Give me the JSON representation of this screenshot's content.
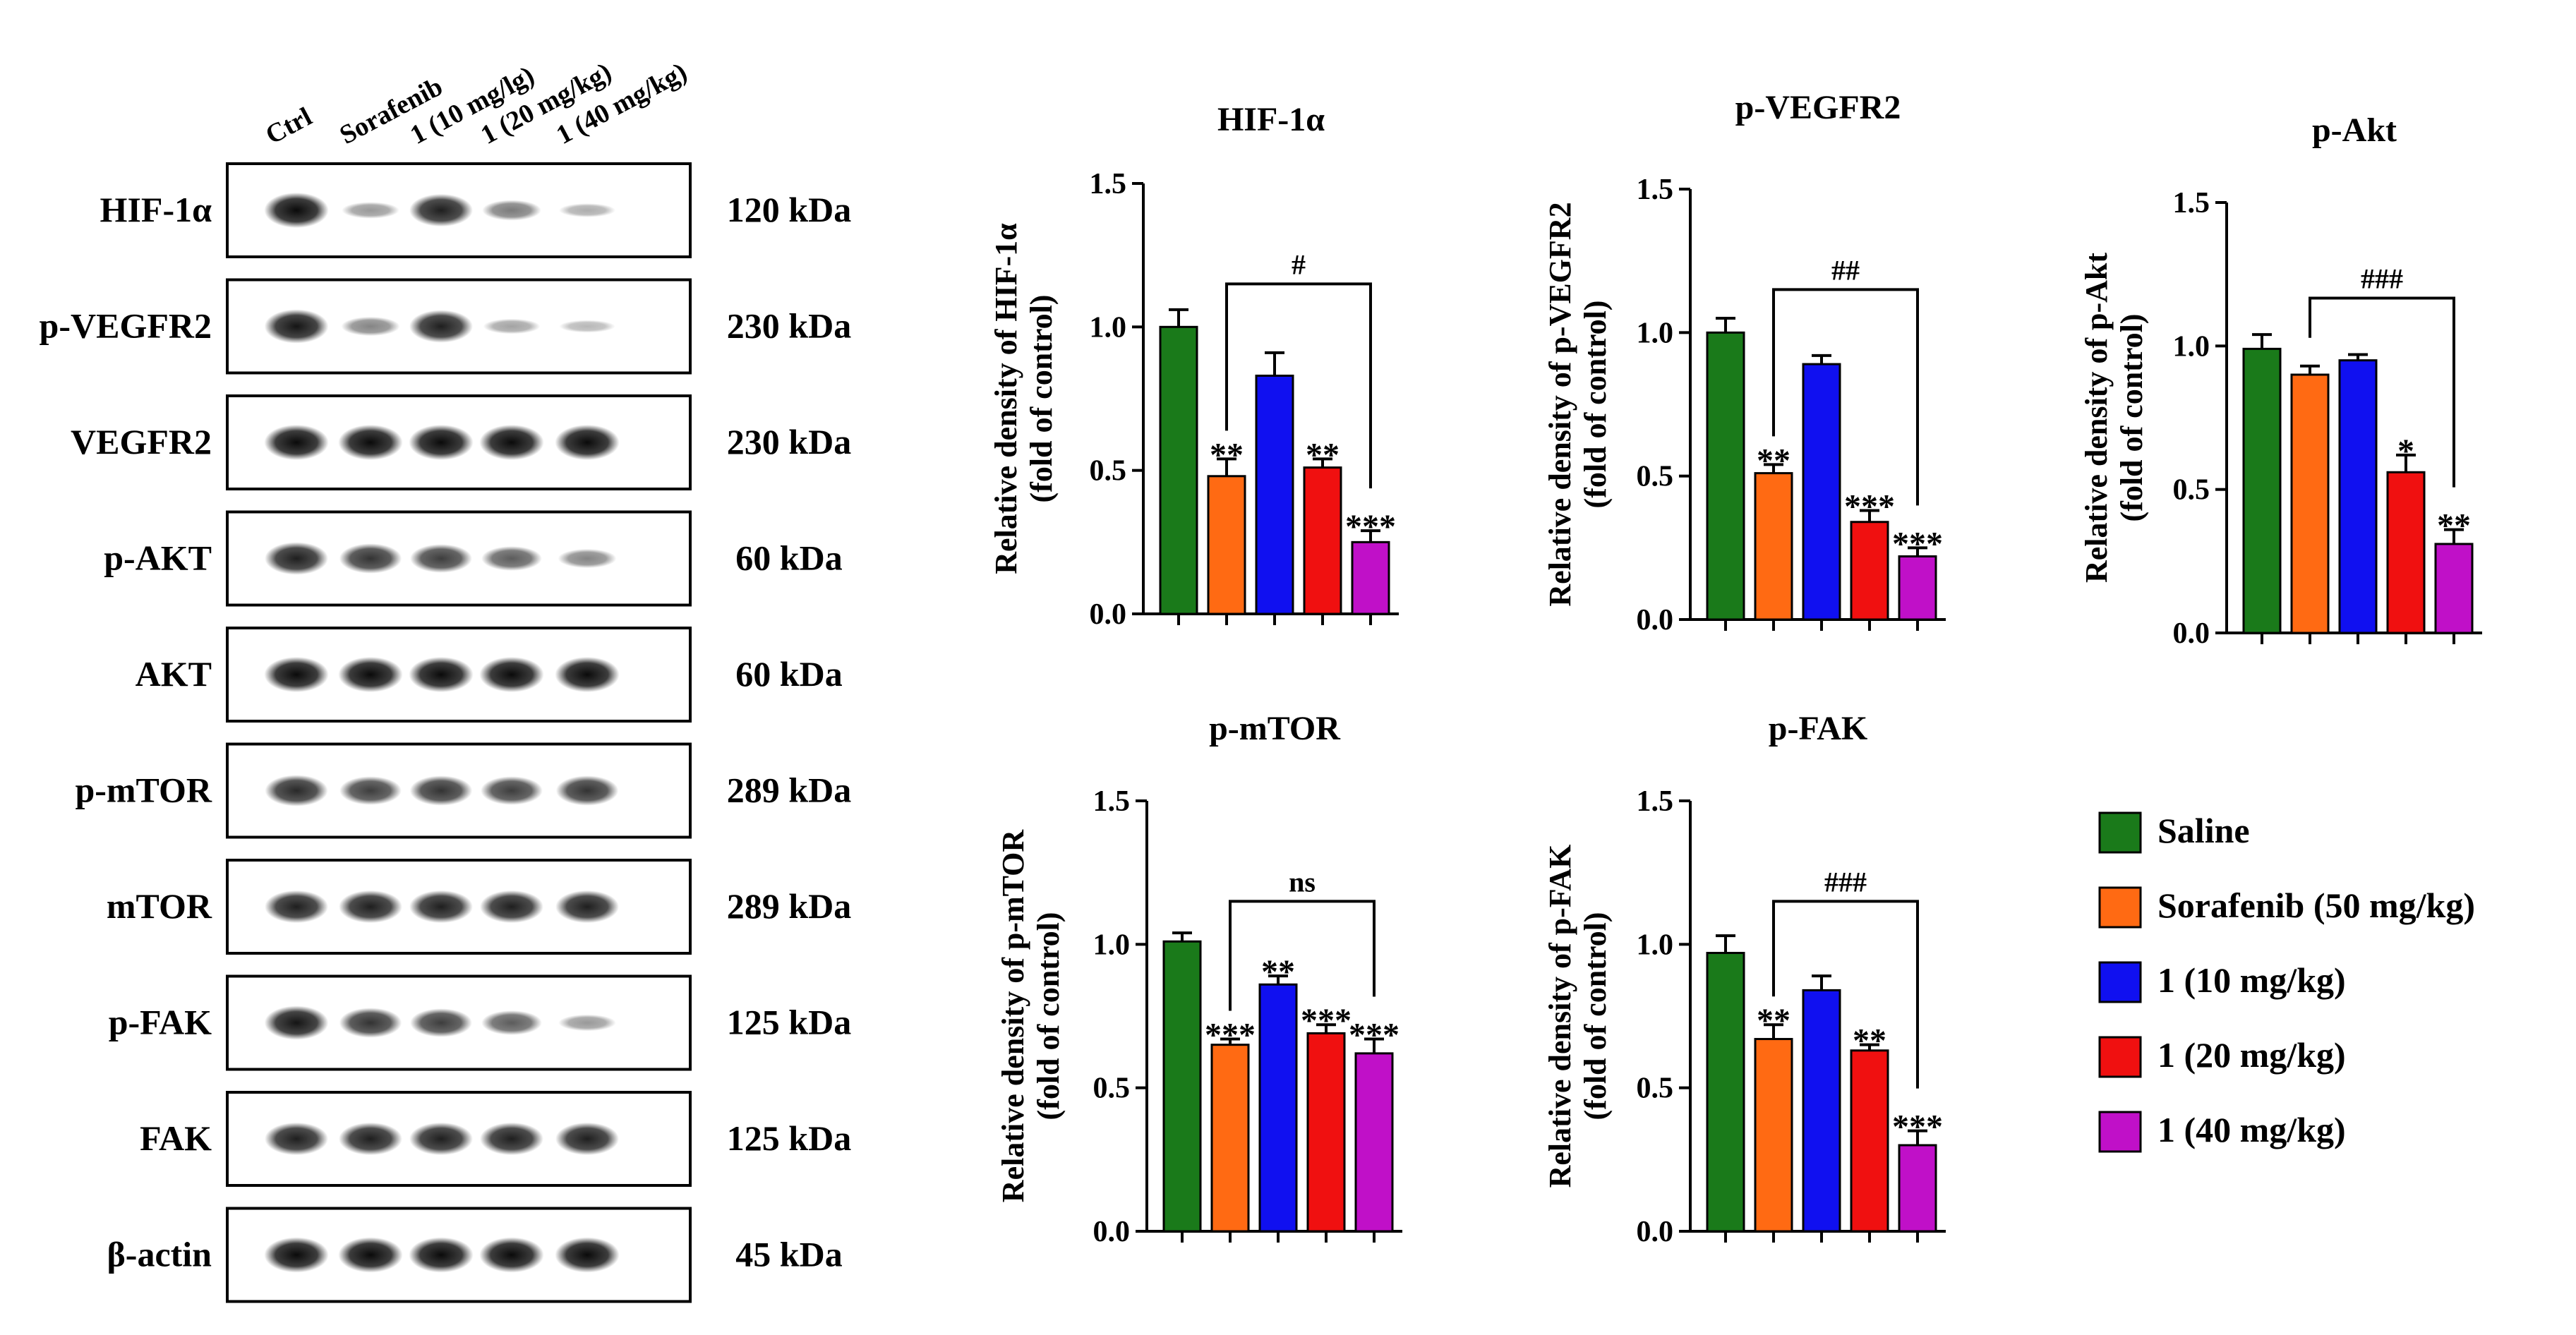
{
  "blot": {
    "lane_labels": [
      "Ctrl",
      "Sorafenib",
      "1 (10 mg/lg)",
      "1 (20 mg/kg)",
      "1 (40 mg/kg)"
    ],
    "rows": [
      {
        "protein": "HIF-1α",
        "size": "120 kDa",
        "intensities": [
          0.95,
          0.25,
          0.85,
          0.4,
          0.15
        ]
      },
      {
        "protein": "p-VEGFR2",
        "size": "230 kDa",
        "intensities": [
          0.9,
          0.35,
          0.85,
          0.2,
          0.1
        ]
      },
      {
        "protein": "VEGFR2",
        "size": "230 kDa",
        "intensities": [
          0.95,
          0.95,
          0.95,
          0.95,
          0.95
        ]
      },
      {
        "protein": "p-AKT",
        "size": "60 kDa",
        "intensities": [
          0.85,
          0.75,
          0.7,
          0.55,
          0.35
        ]
      },
      {
        "protein": "AKT",
        "size": "60 kDa",
        "intensities": [
          0.95,
          0.95,
          0.95,
          0.95,
          0.95
        ]
      },
      {
        "protein": "p-mTOR",
        "size": "289 kDa",
        "intensities": [
          0.8,
          0.7,
          0.75,
          0.7,
          0.75
        ]
      },
      {
        "protein": "mTOR",
        "size": "289 kDa",
        "intensities": [
          0.85,
          0.85,
          0.85,
          0.85,
          0.85
        ]
      },
      {
        "protein": "p-FAK",
        "size": "125 kDa",
        "intensities": [
          0.9,
          0.75,
          0.7,
          0.55,
          0.25
        ]
      },
      {
        "protein": "FAK",
        "size": "125 kDa",
        "intensities": [
          0.85,
          0.85,
          0.85,
          0.85,
          0.85
        ]
      },
      {
        "protein": "β-actin",
        "size": "45 kDa",
        "intensities": [
          0.95,
          0.95,
          0.95,
          0.95,
          0.95
        ]
      }
    ]
  },
  "legend": {
    "entries": [
      {
        "label": "Saline",
        "color": "#1a7a1a"
      },
      {
        "label": "Sorafenib (50 mg/kg)",
        "color": "#ff6a13"
      },
      {
        "label": "1 (10 mg/kg)",
        "color": "#1010f0"
      },
      {
        "label": "1 (20 mg/kg)",
        "color": "#f01010"
      },
      {
        "label": "1 (40 mg/kg)",
        "color": "#c010c8"
      }
    ]
  },
  "chart_data": [
    {
      "type": "bar",
      "title": "HIF-1α",
      "ylabel_line1": "Relative density of HIF-1α",
      "ylabel_line2": "(fold of control)",
      "ylim": [
        0,
        1.5
      ],
      "yticks": [
        "0.0",
        "0.5",
        "1.0",
        "1.5"
      ],
      "categories": [
        "Saline",
        "Sorafenib (50 mg/kg)",
        "1 (10 mg/kg)",
        "1 (20 mg/kg)",
        "1 (40 mg/kg)"
      ],
      "values": [
        1.0,
        0.48,
        0.83,
        0.51,
        0.25
      ],
      "errors": [
        0.06,
        0.06,
        0.08,
        0.03,
        0.04
      ],
      "annotations": [
        "",
        "**",
        "",
        "**",
        "***"
      ],
      "comparison": {
        "from": 1,
        "to": 4,
        "label": "#"
      }
    },
    {
      "type": "bar",
      "title": "p-VEGFR2",
      "ylabel_line1": "Relative density of p-VEGFR2",
      "ylabel_line2": "(fold of control)",
      "ylim": [
        0,
        1.5
      ],
      "yticks": [
        "0.0",
        "0.5",
        "1.0",
        "1.5"
      ],
      "categories": [
        "Saline",
        "Sorafenib (50 mg/kg)",
        "1 (10 mg/kg)",
        "1 (20 mg/kg)",
        "1 (40 mg/kg)"
      ],
      "values": [
        1.0,
        0.51,
        0.89,
        0.34,
        0.22
      ],
      "errors": [
        0.05,
        0.03,
        0.03,
        0.04,
        0.03
      ],
      "annotations": [
        "",
        "**",
        "",
        "***",
        "***"
      ],
      "comparison": {
        "from": 1,
        "to": 4,
        "label": "##"
      }
    },
    {
      "type": "bar",
      "title": "p-Akt",
      "ylabel_line1": "Relative density of p-Akt",
      "ylabel_line2": "(fold of control)",
      "ylim": [
        0,
        1.5
      ],
      "yticks": [
        "0.0",
        "0.5",
        "1.0",
        "1.5"
      ],
      "categories": [
        "Saline",
        "Sorafenib (50 mg/kg)",
        "1 (10 mg/kg)",
        "1 (20 mg/kg)",
        "1 (40 mg/kg)"
      ],
      "values": [
        0.99,
        0.9,
        0.95,
        0.56,
        0.31
      ],
      "errors": [
        0.05,
        0.03,
        0.02,
        0.06,
        0.05
      ],
      "annotations": [
        "",
        "",
        "",
        "*",
        "**"
      ],
      "comparison": {
        "from": 1,
        "to": 4,
        "label": "###"
      }
    },
    {
      "type": "bar",
      "title": "p-mTOR",
      "ylabel_line1": "Relative density of p-mTOR",
      "ylabel_line2": "(fold of control)",
      "ylim": [
        0,
        1.5
      ],
      "yticks": [
        "0.0",
        "0.5",
        "1.0",
        "1.5"
      ],
      "categories": [
        "Saline",
        "Sorafenib (50 mg/kg)",
        "1 (10 mg/kg)",
        "1 (20 mg/kg)",
        "1 (40 mg/kg)"
      ],
      "values": [
        1.01,
        0.65,
        0.86,
        0.69,
        0.62
      ],
      "errors": [
        0.03,
        0.02,
        0.03,
        0.03,
        0.05
      ],
      "annotations": [
        "",
        "***",
        "**",
        "***",
        "***"
      ],
      "comparison": {
        "from": 1,
        "to": 4,
        "label": "ns"
      }
    },
    {
      "type": "bar",
      "title": "p-FAK",
      "ylabel_line1": "Relative density of p-FAK",
      "ylabel_line2": "(fold of control)",
      "ylim": [
        0,
        1.5
      ],
      "yticks": [
        "0.0",
        "0.5",
        "1.0",
        "1.5"
      ],
      "categories": [
        "Saline",
        "Sorafenib (50 mg/kg)",
        "1 (10 mg/kg)",
        "1 (20 mg/kg)",
        "1 (40 mg/kg)"
      ],
      "values": [
        0.97,
        0.67,
        0.84,
        0.63,
        0.3
      ],
      "errors": [
        0.06,
        0.05,
        0.05,
        0.02,
        0.05
      ],
      "annotations": [
        "",
        "**",
        "",
        "**",
        "***"
      ],
      "comparison": {
        "from": 1,
        "to": 4,
        "label": "###"
      }
    }
  ]
}
